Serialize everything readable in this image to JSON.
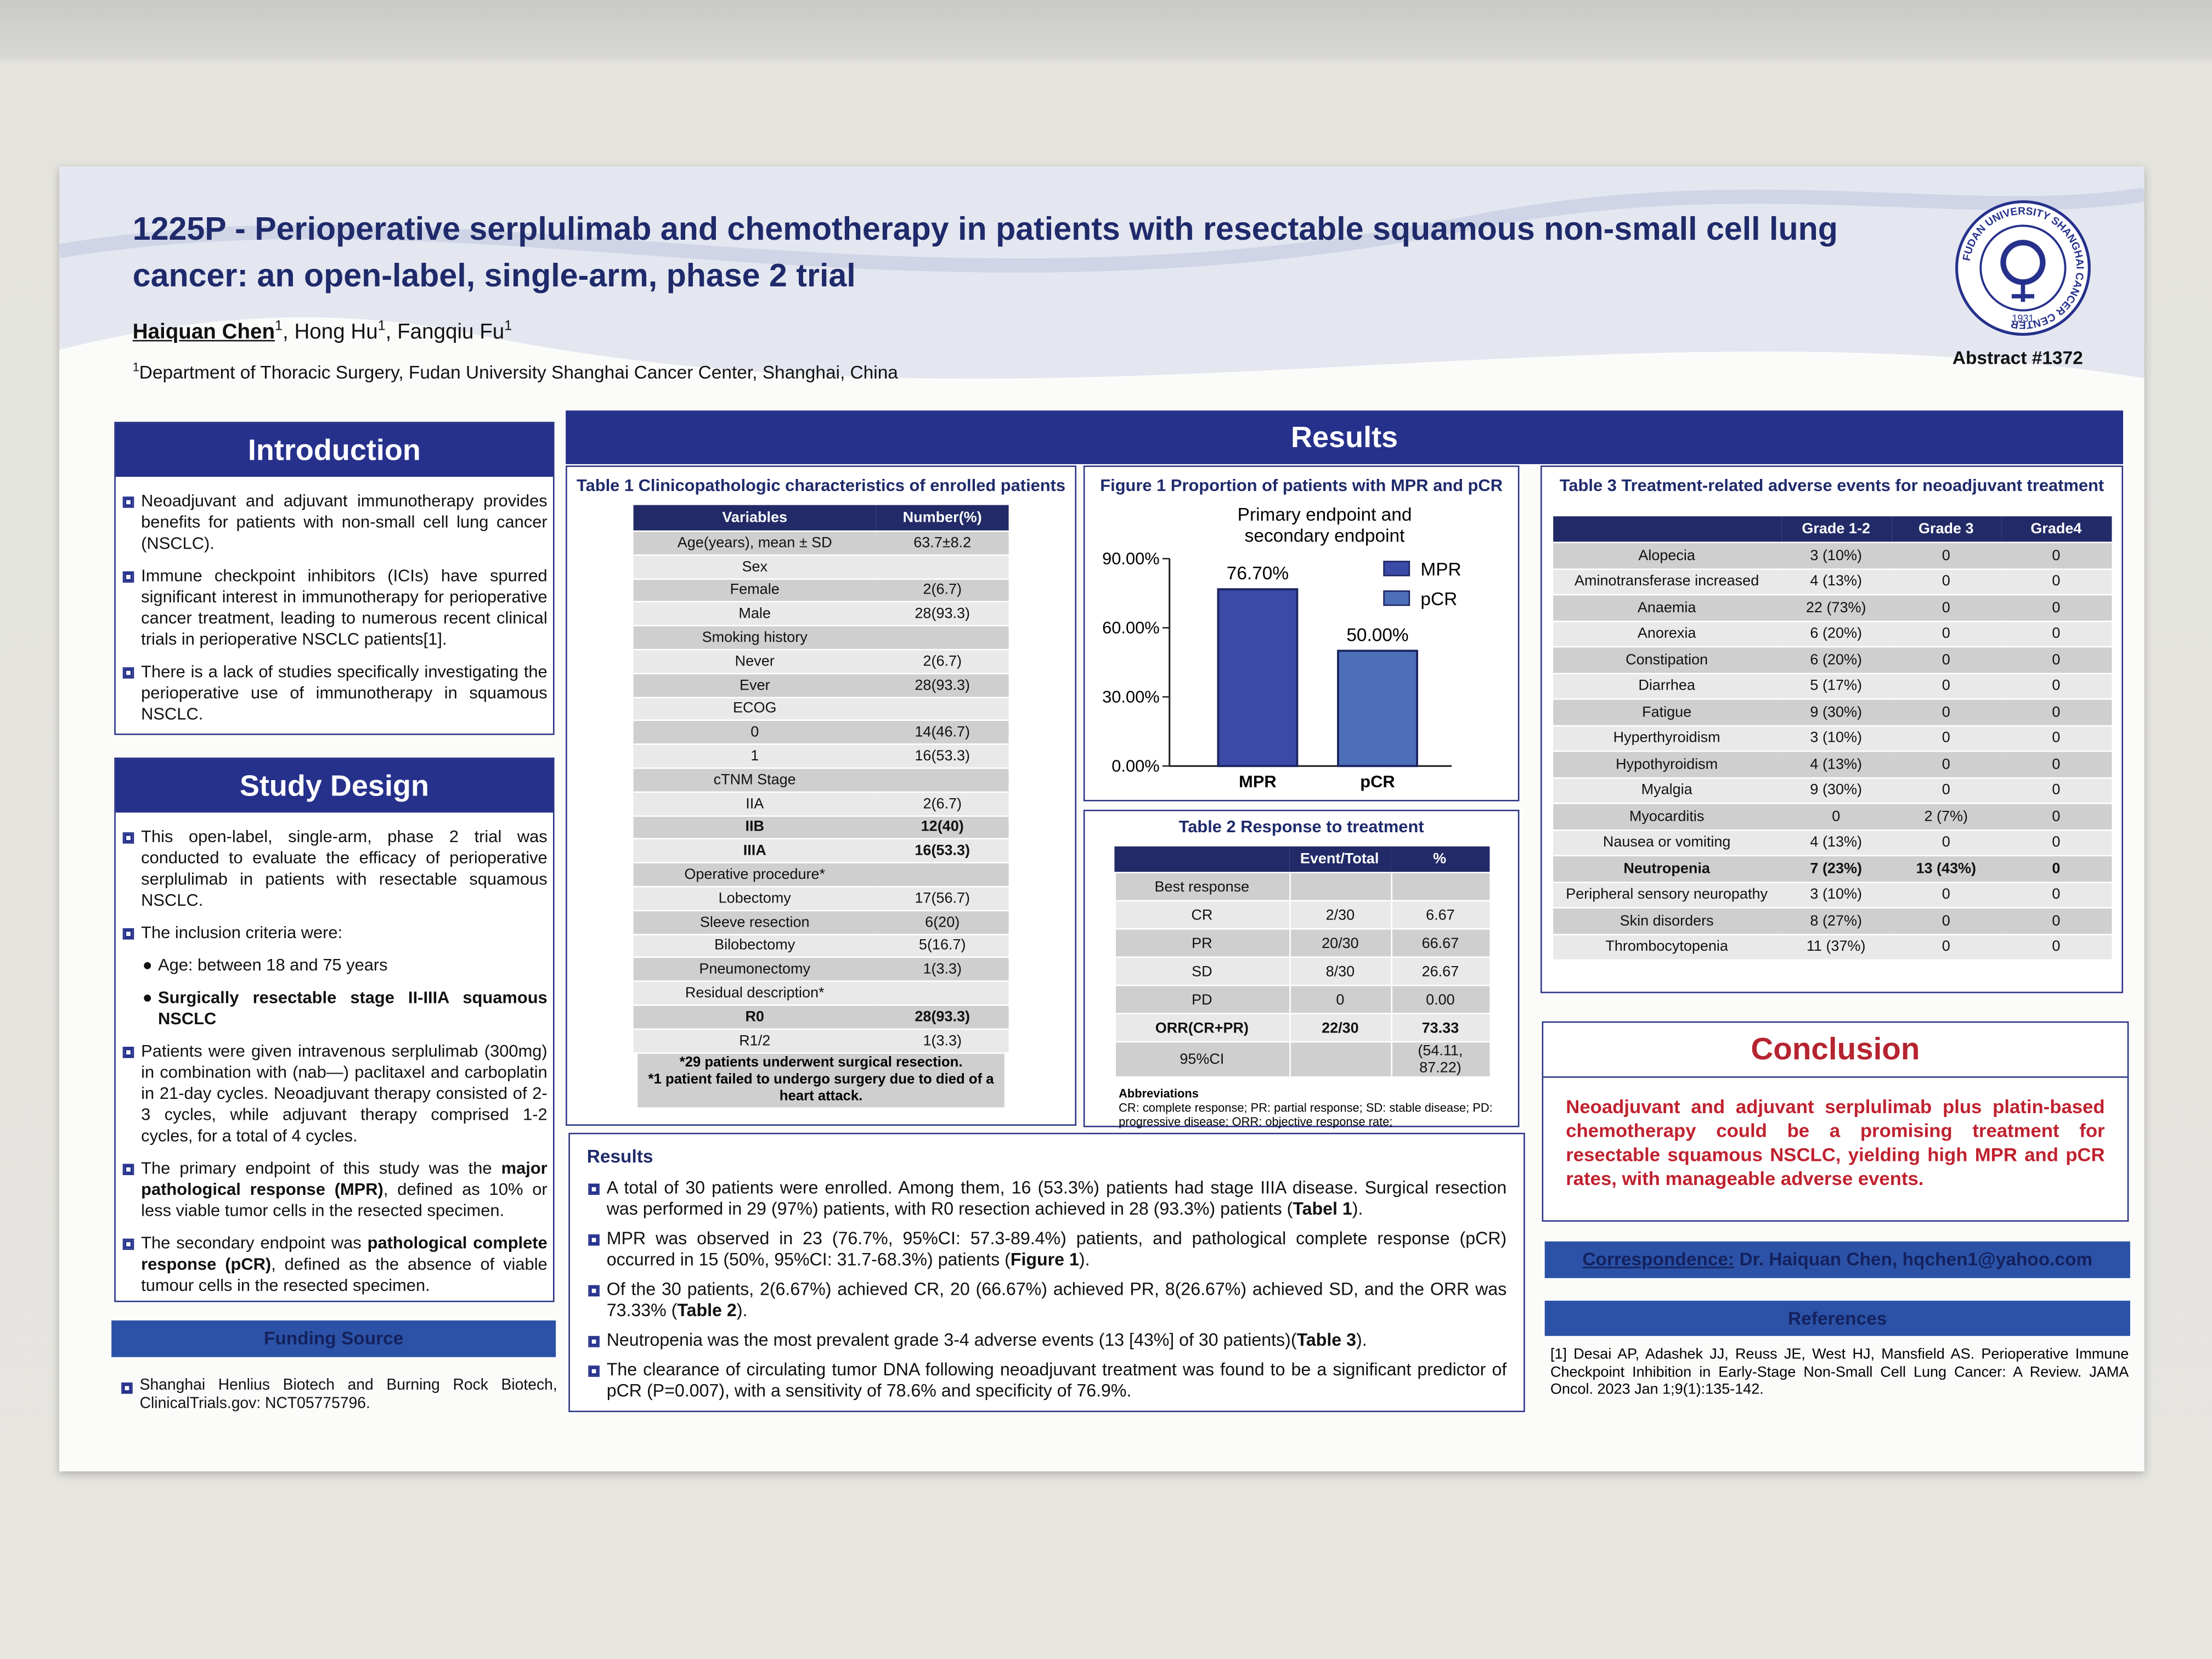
{
  "header": {
    "title": "1225P - Perioperative serplulimab and chemotherapy in patients with resectable squamous non-small cell lung cancer: an open-label, single-arm, phase 2 trial",
    "authors": [
      {
        "bu": "Haiquan Chen"
      },
      {
        "sup": "1"
      },
      ", Hong Hu",
      {
        "sup": "1"
      },
      ", Fangqiu Fu",
      {
        "sup": "1"
      }
    ],
    "affiliation": [
      {
        "sup": "1"
      },
      "Department of Thoracic Surgery, Fudan University Shanghai Cancer Center, Shanghai, China"
    ],
    "abstract": "Abstract #1372",
    "logo": {
      "name": "FUDAN UNIVERSITY SHANGHAI CANCER CENTER",
      "year": "1931"
    }
  },
  "introduction": {
    "heading": "Introduction",
    "bullets": [
      [
        "Neoadjuvant and adjuvant immunotherapy provides benefits for patients with non-small cell lung cancer (NSCLC)."
      ],
      [
        "Immune checkpoint inhibitors (ICIs) have spurred significant interest in immunotherapy for perioperative cancer treatment, leading to numerous recent clinical trials in perioperative NSCLC patients[1]."
      ],
      [
        "There is a lack of studies specifically investigating the perioperative use of immunotherapy in squamous NSCLC."
      ]
    ]
  },
  "study_design": {
    "heading": "Study Design",
    "bullets": [
      [
        "This open-label, single-arm, phase 2 trial was conducted to evaluate the efficacy of perioperative serplulimab in patients with resectable squamous NSCLC."
      ],
      [
        "The inclusion criteria were:"
      ],
      [
        "Patients were given intravenous serplulimab (300mg) in combination with (nab—) paclitaxel and carboplatin in 21-day cycles. Neoadjuvant therapy consisted of 2-3 cycles, while adjuvant therapy comprised 1-2 cycles, for a total of 4 cycles."
      ],
      [
        "The primary endpoint of this study was the ",
        {
          "b": "major pathological response (MPR)"
        },
        ", defined as 10% or less viable tumor cells in the resected specimen."
      ],
      [
        "The secondary endpoint was ",
        {
          "b": "pathological complete response (pCR)"
        },
        ", defined as the absence of viable tumour cells in the resected specimen."
      ]
    ],
    "criteria": [
      [
        "Age: between 18 and 75 years"
      ],
      [
        {
          "b": "Surgically resectable stage II-IIIA squamous NSCLC"
        }
      ]
    ]
  },
  "funding": {
    "heading": "Funding Source",
    "text": [
      "Shanghai Henlius Biotech and Burning Rock Biotech, ClinicalTrials.gov: NCT05775796."
    ]
  },
  "results": {
    "heading": "Results",
    "table1": {
      "title": "Table 1 Clinicopathologic characteristics of enrolled patients",
      "headers": [
        "Variables",
        "Number(%)"
      ],
      "rows": [
        [
          "Age(years), mean ± SD",
          "63.7±8.2"
        ],
        [
          "Sex",
          null
        ],
        [
          "Female",
          "2(6.7)"
        ],
        [
          "Male",
          "28(93.3)"
        ],
        [
          "Smoking history",
          null
        ],
        [
          "Never",
          "2(6.7)"
        ],
        [
          "Ever",
          "28(93.3)"
        ],
        [
          "ECOG",
          null
        ],
        [
          "0",
          "14(46.7)"
        ],
        [
          "1",
          "16(53.3)"
        ],
        [
          "cTNM Stage",
          null
        ],
        [
          "IIA",
          "2(6.7)"
        ],
        [
          "IIB",
          "12(40)"
        ],
        [
          "IIIA",
          "16(53.3)"
        ],
        [
          "Operative procedure*",
          null
        ],
        [
          "Lobectomy",
          "17(56.7)"
        ],
        [
          "Sleeve resection",
          "6(20)"
        ],
        [
          "Bilobectomy",
          "5(16.7)"
        ],
        [
          "Pneumonectomy",
          "1(3.3)"
        ],
        [
          "Residual description*",
          null
        ],
        [
          "R0",
          "28(93.3)"
        ],
        [
          "R1/2",
          "1(3.3)"
        ]
      ],
      "bold_rows": [
        12,
        13,
        20
      ],
      "notes": [
        "*29 patients underwent surgical resection.",
        "*1 patient failed to undergo surgery due to died of a heart attack."
      ]
    },
    "table2": {
      "title": "Table 2 Response to treatment",
      "headers": [
        null,
        "Event/Total",
        "%"
      ],
      "rows": [
        [
          "Best response",
          null,
          null
        ],
        [
          "CR",
          "2/30",
          "6.67"
        ],
        [
          "PR",
          "20/30",
          "66.67"
        ],
        [
          "SD",
          "8/30",
          "26.67"
        ],
        [
          "PD",
          "0",
          "0.00"
        ],
        [
          "ORR(CR+PR)",
          "22/30",
          "73.33"
        ],
        [
          "95%CI",
          null,
          "(54.11, 87.22)"
        ]
      ],
      "bold_rows": [
        5
      ],
      "abbreviations_title": "Abbreviations",
      "abbreviations": "CR: complete response; PR: partial response; SD: stable disease; PD: progressive disease; ORR: objective response rate;"
    },
    "table3": {
      "title": "Table 3 Treatment-related adverse events for neoadjuvant treatment",
      "headers": [
        null,
        "Grade 1-2",
        "Grade 3",
        "Grade4"
      ],
      "rows": [
        [
          "Alopecia",
          "3 (10%)",
          "0",
          "0"
        ],
        [
          "Aminotransferase increased",
          "4 (13%)",
          "0",
          "0"
        ],
        [
          "Anaemia",
          "22 (73%)",
          "0",
          "0"
        ],
        [
          "Anorexia",
          "6 (20%)",
          "0",
          "0"
        ],
        [
          "Constipation",
          "6 (20%)",
          "0",
          "0"
        ],
        [
          "Diarrhea",
          "5 (17%)",
          "0",
          "0"
        ],
        [
          "Fatigue",
          "9 (30%)",
          "0",
          "0"
        ],
        [
          "Hyperthyroidism",
          "3 (10%)",
          "0",
          "0"
        ],
        [
          "Hypothyroidism",
          "4 (13%)",
          "0",
          "0"
        ],
        [
          "Myalgia",
          "9 (30%)",
          "0",
          "0"
        ],
        [
          "Myocarditis",
          "0",
          "2 (7%)",
          "0"
        ],
        [
          "Nausea or vomiting",
          "4 (13%)",
          "0",
          "0"
        ],
        [
          "Neutropenia",
          "7 (23%)",
          "13 (43%)",
          "0"
        ],
        [
          "Peripheral sensory neuropathy",
          "3 (10%)",
          "0",
          "0"
        ],
        [
          "Skin disorders",
          "8 (27%)",
          "0",
          "0"
        ],
        [
          "Thrombocytopenia",
          "11 (37%)",
          "0",
          "0"
        ]
      ],
      "bold_rows": [
        12
      ]
    },
    "text": {
      "heading": "Results",
      "bullets": [
        [
          "A total of 30 patients were enrolled. Among them, 16 (53.3%) patients had stage IIIA disease. Surgical resection was performed in 29 (97%) patients, with R0 resection achieved in 28 (93.3%) patients (",
          {
            "b": "Tabel 1"
          },
          ")."
        ],
        [
          "MPR was observed in 23 (76.7%, 95%CI: 57.3-89.4%) patients, and pathological complete response (pCR) occurred in 15 (50%, 95%CI: 31.7-68.3%) patients (",
          {
            "b": "Figure 1"
          },
          ")."
        ],
        [
          "Of the 30 patients, 2(6.67%) achieved CR, 20 (66.67%) achieved PR, 8(26.67%) achieved SD, and the ORR was 73.33% (",
          {
            "b": "Table 2"
          },
          ")."
        ],
        [
          "Neutropenia was the most prevalent grade 3-4 adverse events (13 [43%] of 30 patients)(",
          {
            "b": "Table 3"
          },
          ")."
        ],
        [
          "The clearance of circulating tumor DNA following neoadjuvant treatment was found to be a significant predictor of pCR (P=0.007), with a sensitivity of 78.6% and specificity of 76.9%."
        ]
      ]
    }
  },
  "chart_data": {
    "type": "bar",
    "title": "Figure 1 Proportion of patients with MPR and pCR",
    "subtitle": "Primary endpoint and secondary endpoint",
    "categories": [
      "MPR",
      "pCR"
    ],
    "values": [
      76.7,
      50
    ],
    "value_labels": [
      "76.70%",
      "50.00%"
    ],
    "colors": [
      "#3b4aa6",
      "#4d6fb9"
    ],
    "ylim": [
      0,
      90
    ],
    "yticks": [
      {
        "value": 0,
        "label": "0.00%"
      },
      {
        "value": 30,
        "label": "30.00%"
      },
      {
        "value": 60,
        "label": "60.00%"
      },
      {
        "value": 90,
        "label": "90.00%"
      }
    ],
    "legend": "top-right"
  },
  "conclusion": {
    "heading": "Conclusion",
    "text": "Neoadjuvant and adjuvant serplulimab plus platin-based chemotherapy could be a promising treatment for resectable squamous NSCLC, yielding high MPR and pCR rates, with manageable adverse events."
  },
  "correspondence": [
    {
      "u": "Correspondence:"
    },
    " Dr. Haiquan Chen, hqchen1@yahoo.com"
  ],
  "references": {
    "heading": "References",
    "items": [
      "[1] Desai AP, Adashek JJ, Reuss JE, West HJ, Mansfield AS. Perioperative Immune Checkpoint Inhibition in Early-Stage Non-Small Cell Lung Cancer: A Review. JAMA Oncol. 2023 Jan 1;9(1):135-142."
    ]
  }
}
